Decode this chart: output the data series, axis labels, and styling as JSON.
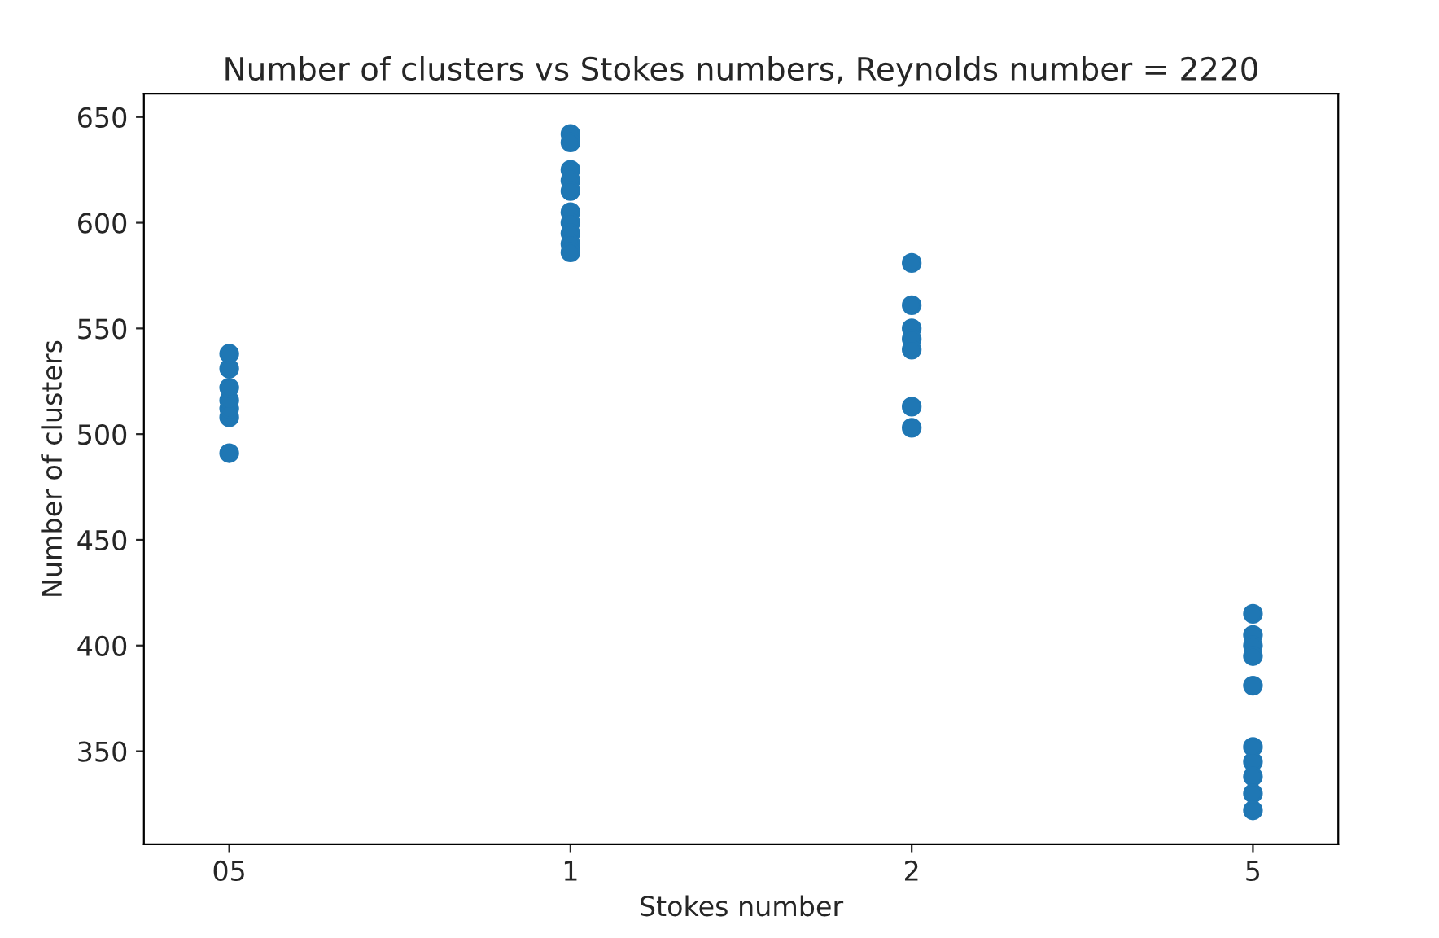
{
  "chart_data": {
    "type": "scatter",
    "title": "Number of clusters vs Stokes numbers, Reynolds number = 2220",
    "xlabel": "Stokes number",
    "ylabel": "Number of clusters",
    "categories": [
      "05",
      "1",
      "2",
      "5"
    ],
    "series": [
      {
        "color": "#1f77b4",
        "x": [
          "05",
          "05",
          "05",
          "05",
          "05",
          "05",
          "05",
          "1",
          "1",
          "1",
          "1",
          "1",
          "1",
          "1",
          "1",
          "1",
          "1",
          "2",
          "2",
          "2",
          "2",
          "2",
          "2",
          "2",
          "5",
          "5",
          "5",
          "5",
          "5",
          "5",
          "5",
          "5",
          "5",
          "5"
        ],
        "values": [
          491,
          508,
          512,
          516,
          522,
          531,
          538,
          642,
          638,
          625,
          620,
          615,
          605,
          600,
          595,
          590,
          586,
          581,
          561,
          550,
          545,
          540,
          513,
          503,
          415,
          405,
          400,
          395,
          381,
          352,
          345,
          338,
          330,
          322
        ]
      }
    ],
    "ylim": [
      306,
      661
    ],
    "yticks": [
      350,
      400,
      450,
      500,
      550,
      600,
      650
    ],
    "marker": "circle",
    "grid": false,
    "legend": false
  }
}
